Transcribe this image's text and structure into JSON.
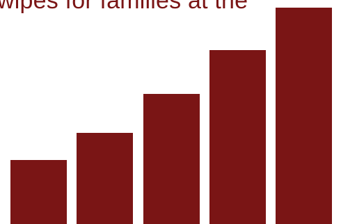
{
  "title": "wipes for families at the",
  "colors": {
    "bar": "#7a1515",
    "title": "#7a1515",
    "background": "#ffffff"
  },
  "chart_data": {
    "type": "bar",
    "categories": [
      "",
      "",
      "",
      "",
      ""
    ],
    "values": [
      92,
      131,
      187,
      250,
      311
    ],
    "ylim": [
      0,
      311
    ],
    "grid": false,
    "xlabel": "",
    "ylabel": ""
  }
}
